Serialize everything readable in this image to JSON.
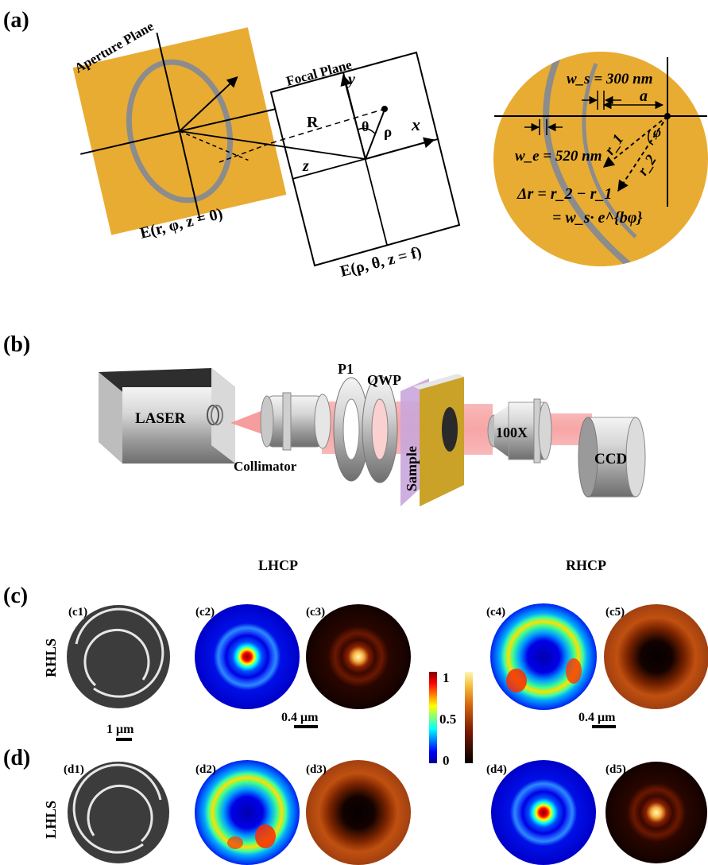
{
  "panels": {
    "a": "(a)",
    "b": "(b)",
    "c": "(c)",
    "d": "(d)",
    "c1": "(c1)",
    "c2": "(c2)",
    "c3": "(c3)",
    "c4": "(c4)",
    "c5": "(c5)",
    "d1": "(d1)",
    "d2": "(d2)",
    "d3": "(d3)",
    "d4": "(d4)",
    "d5": "(d5)"
  },
  "schematic": {
    "aperture_plane": "Aperture Plane",
    "focal_plane": "Focal Plane",
    "R": "R",
    "z": "z",
    "x": "x",
    "y": "y",
    "theta": "θ",
    "rho": "ρ",
    "aperture_field": "E(r, φ, z = 0)",
    "focal_field": "E(ρ, θ, z = f)",
    "ws": "w_s = 300 nm",
    "we": "w_e = 520 nm",
    "a": "a",
    "phi": "φ",
    "r1": "r_1",
    "r2": "r_2",
    "delta_r_1": "Δr = r_2 − r_1",
    "delta_r_2": "= w_s· e^{bφ}"
  },
  "setup": {
    "laser": "LASER",
    "collimator": "Collimator",
    "p1": "P1",
    "qwp": "QWP",
    "sample": "Sample",
    "objective": "100X",
    "ccd": "CCD"
  },
  "results": {
    "lhcp": "LHCP",
    "rhcp": "RHCP",
    "rhls": "RHLS",
    "lhls": "LHLS",
    "scale_sem": "1 μm",
    "scale_c3": "0.4 μm",
    "scale_c5": "0.4 μm",
    "colorbar_ticks": [
      "1",
      "0.5",
      "0"
    ]
  },
  "colors": {
    "gold": "#e8ac33",
    "slit": "#8c8c8c",
    "beam": "#f06464"
  }
}
